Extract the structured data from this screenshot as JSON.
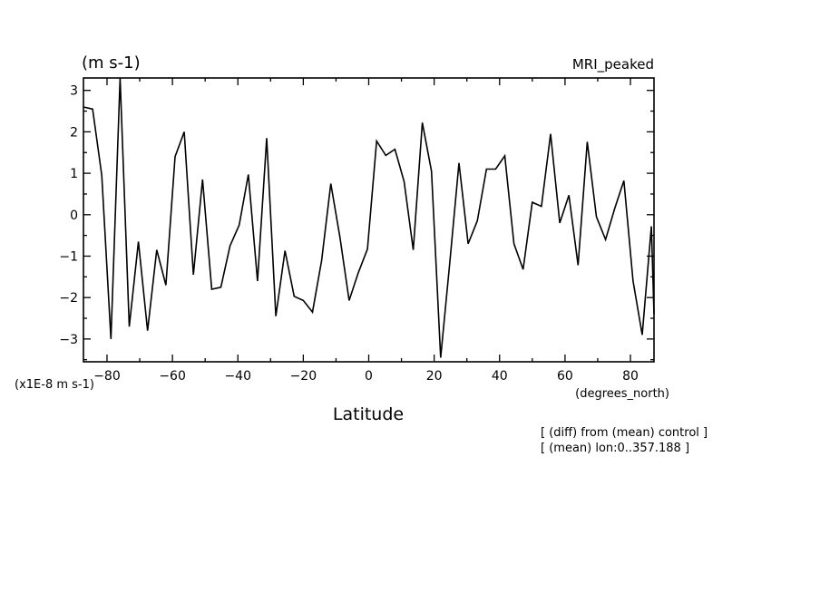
{
  "chart_data": {
    "type": "line",
    "title_left": "(m s-1)",
    "title_right": "MRI_peaked",
    "xlabel": "Latitude",
    "x_unit": "(degrees_north)",
    "y_scale_note": "(x1E-8 m s-1)",
    "xlim": [
      -87.2,
      87.2
    ],
    "ylim": [
      -3.55,
      3.3
    ],
    "x_ticks": [
      -80,
      -60,
      -40,
      -20,
      0,
      20,
      40,
      60,
      80
    ],
    "y_ticks": [
      -3,
      -2,
      -1,
      0,
      1,
      2,
      3
    ],
    "grid": false,
    "annotations": [
      "[ (diff) from (mean) control ]",
      "[ (mean) lon:0..357.188 ]"
    ],
    "series": [
      {
        "x": [
          -87.2,
          -84.4,
          -81.6,
          -78.8,
          -76.0,
          -73.2,
          -70.4,
          -67.6,
          -64.8,
          -62.0,
          -59.2,
          -56.4,
          -53.6,
          -50.8,
          -48.0,
          -45.2,
          -42.4,
          -39.6,
          -36.8,
          -34.0,
          -31.2,
          -28.4,
          -25.6,
          -22.8,
          -20.0,
          -17.2,
          -14.4,
          -11.6,
          -8.8,
          -6.0,
          -3.2,
          -0.4,
          2.4,
          5.2,
          8.0,
          10.8,
          13.6,
          16.4,
          19.2,
          22.0,
          24.8,
          27.6,
          30.4,
          33.2,
          36.0,
          38.8,
          41.6,
          44.4,
          47.2,
          50.0,
          52.8,
          55.6,
          58.4,
          61.2,
          64.0,
          66.8,
          69.6,
          72.4,
          75.2,
          78.0,
          80.8,
          83.6,
          86.4,
          87.2
        ],
        "values": [
          2.6,
          2.55,
          0.95,
          -3.0,
          3.3,
          -2.7,
          -0.65,
          -2.8,
          -0.85,
          -1.7,
          1.4,
          2.0,
          -1.45,
          0.85,
          -1.8,
          -1.75,
          -0.75,
          -0.25,
          0.97,
          -1.6,
          1.85,
          -2.45,
          -0.87,
          -1.97,
          -2.07,
          -2.35,
          -1.1,
          0.75,
          -0.55,
          -2.07,
          -1.4,
          -0.83,
          1.78,
          1.43,
          1.58,
          0.8,
          -0.85,
          2.22,
          1.05,
          -3.45,
          -1.15,
          1.25,
          -0.7,
          -0.15,
          1.1,
          1.1,
          1.42,
          -0.7,
          -1.32,
          0.3,
          0.2,
          1.95,
          -0.2,
          0.47,
          -1.22,
          1.76,
          -0.05,
          -0.6,
          0.15,
          0.82,
          -1.6,
          -2.9,
          -0.28,
          -2.4
        ]
      }
    ]
  }
}
